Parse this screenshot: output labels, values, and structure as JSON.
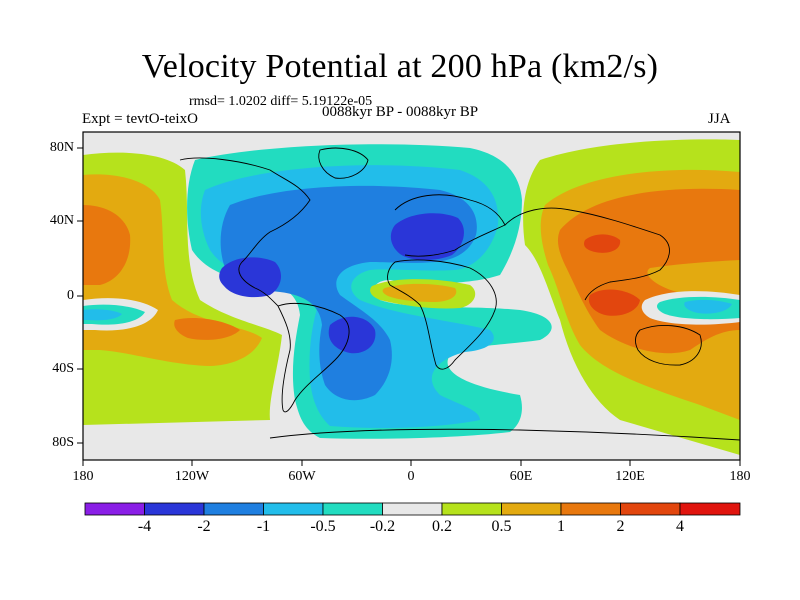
{
  "title": "Velocity Potential at 200 hPa (km2/s)",
  "stats": "rmsd= 1.0202 diff= 5.19122e-05",
  "experiment": "Expt = tevtO-teixO",
  "period": "0088kyr BP - 0088kyr BP",
  "season": "JJA",
  "lat_ticks": [
    "80N",
    "40N",
    "0",
    "40S",
    "80S"
  ],
  "lon_ticks": [
    "180",
    "120W",
    "60W",
    "0",
    "60E",
    "120E",
    "180"
  ],
  "colorbar": {
    "labels": [
      "-4",
      "-2",
      "-1",
      "-0.5",
      "-0.2",
      "0.2",
      "0.5",
      "1",
      "2",
      "4"
    ],
    "colors": [
      "#8a1ee6",
      "#2a36d8",
      "#1f7fe0",
      "#22bdea",
      "#22dcc0",
      "#e8e8e8",
      "#b6e21c",
      "#e3aa10",
      "#e8780e",
      "#e2460e",
      "#e0140e"
    ]
  },
  "palette": {
    "neg4": "#2a36d8",
    "neg2": "#1f7fe0",
    "neg1": "#22bdea",
    "neg05": "#22dcc0",
    "neutral": "#e8e8e8",
    "pos05": "#b6e21c",
    "pos1": "#e3aa10",
    "pos2": "#e8780e",
    "pos4": "#e2460e"
  }
}
